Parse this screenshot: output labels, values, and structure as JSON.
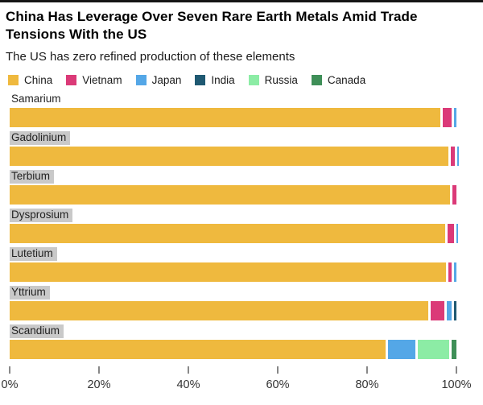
{
  "page": {
    "title": "China Has Leverage Over Seven Rare Earth Metals Amid Trade Tensions With the US",
    "subtitle": "The US has zero refined production of these elements"
  },
  "legend": [
    {
      "label": "China",
      "color": "#EFB93E"
    },
    {
      "label": "Vietnam",
      "color": "#DB3A78"
    },
    {
      "label": "Japan",
      "color": "#54A7E7"
    },
    {
      "label": "India",
      "color": "#1F5972"
    },
    {
      "label": "Russia",
      "color": "#8CECA5"
    },
    {
      "label": "Canada",
      "color": "#3F8F58"
    }
  ],
  "chart_data": {
    "type": "bar",
    "orientation": "horizontal",
    "stacked": true,
    "title": "China Has Leverage Over Seven Rare Earth Metals Amid Trade Tensions With the US",
    "subtitle": "The US has zero refined production of these elements",
    "unit": "%",
    "grid": false,
    "legend_position": "top",
    "categories": [
      "Samarium",
      "Gadolinium",
      "Terbium",
      "Dysprosium",
      "Lutetium",
      "Yttrium",
      "Scandium"
    ],
    "category_label_highlighted": [
      false,
      true,
      true,
      true,
      true,
      true,
      true
    ],
    "series": [
      {
        "name": "China",
        "color": "#EFB93E",
        "values": [
          96.4,
          98.2,
          98.6,
          97.4,
          97.7,
          93.7,
          84.2
        ]
      },
      {
        "name": "Vietnam",
        "color": "#DB3A78",
        "values": [
          2.6,
          1.4,
          1.4,
          2.0,
          1.3,
          3.6,
          0
        ]
      },
      {
        "name": "Japan",
        "color": "#54A7E7",
        "values": [
          1.0,
          0.4,
          0,
          0.6,
          1.0,
          1.6,
          6.7
        ]
      },
      {
        "name": "India",
        "color": "#1F5972",
        "values": [
          0,
          0,
          0,
          0,
          0,
          1.1,
          0
        ]
      },
      {
        "name": "Russia",
        "color": "#8CECA5",
        "values": [
          0,
          0,
          0,
          0,
          0,
          0,
          7.5
        ]
      },
      {
        "name": "Canada",
        "color": "#3F8F58",
        "values": [
          0,
          0,
          0,
          0,
          0,
          0,
          1.6
        ]
      }
    ],
    "xticks": [
      "0%",
      "20%",
      "40%",
      "60%",
      "80%",
      "100%"
    ],
    "xlim": [
      0,
      100
    ]
  }
}
